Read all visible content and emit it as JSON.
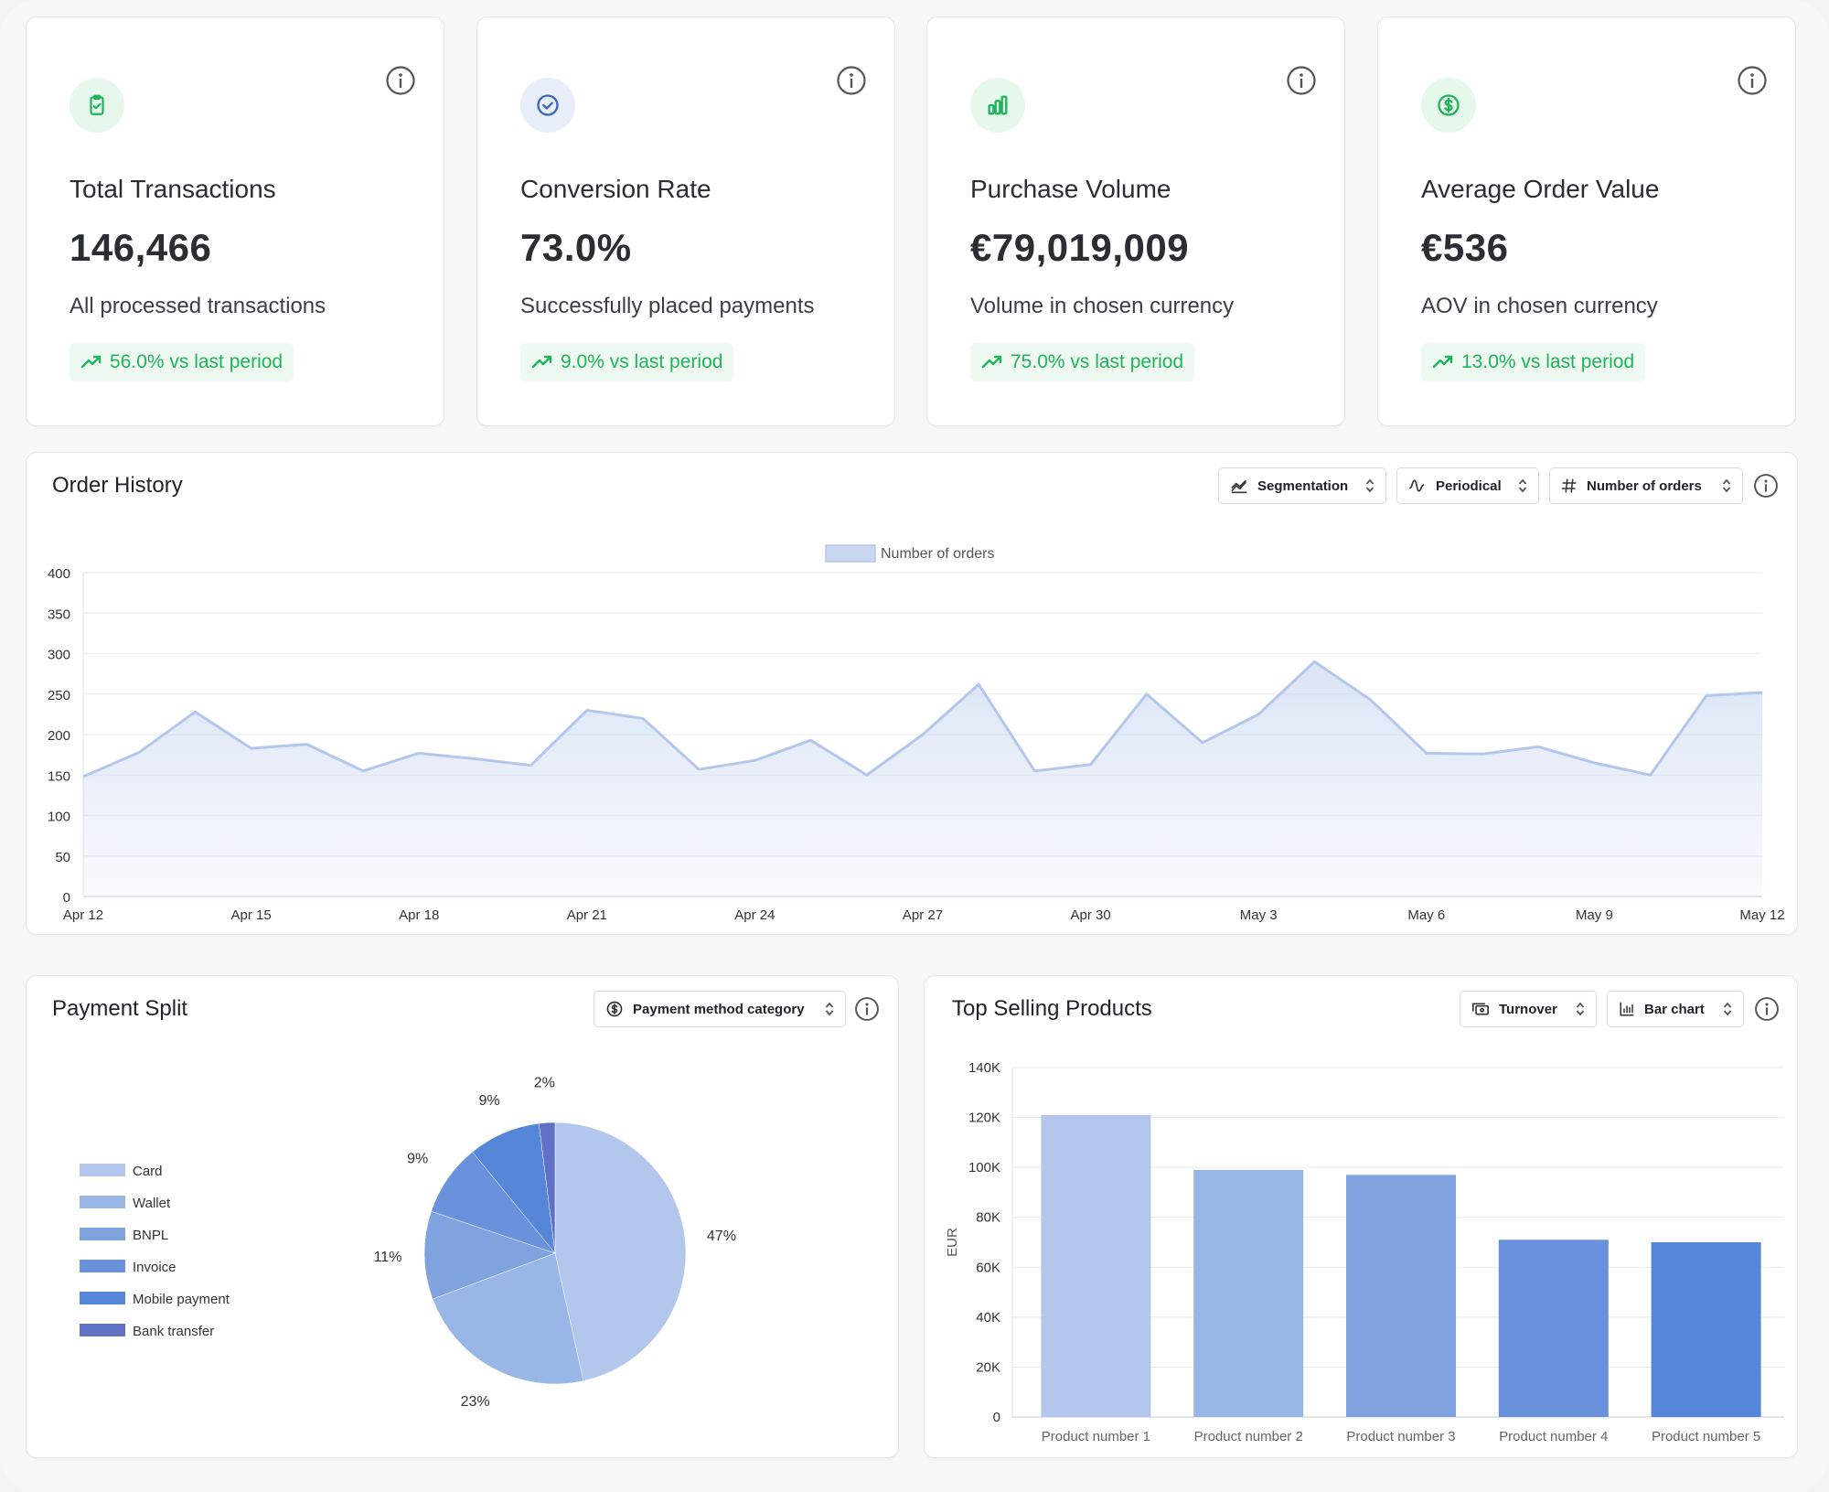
{
  "colors": {
    "accent_green": "#1fb35a",
    "chart_blue": "#b3c7ec",
    "series": [
      "#b3c7ec",
      "#9ab6e6",
      "#7fa3de",
      "#6a92dc",
      "#5586d7",
      "#6071c5"
    ]
  },
  "kpis": [
    {
      "title": "Total Transactions",
      "value": "146,466",
      "subtitle": "All processed transactions",
      "trend": "56.0% vs last period",
      "icon": "clipboard-check-icon",
      "icon_bg": "#e6f8ec",
      "icon_color": "#1fb35a"
    },
    {
      "title": "Conversion Rate",
      "value": "73.0%",
      "subtitle": "Successfully placed payments",
      "trend": "9.0% vs last period",
      "icon": "check-circle-icon",
      "icon_bg": "#e8eef9",
      "icon_color": "#3f66b8"
    },
    {
      "title": "Purchase Volume",
      "value": "€79,019,009",
      "subtitle": "Volume in chosen currency",
      "trend": "75.0% vs last period",
      "icon": "bar-chart-icon",
      "icon_bg": "#e6f8ec",
      "icon_color": "#1fb35a"
    },
    {
      "title": "Average Order Value",
      "value": "€536",
      "subtitle": "AOV in chosen currency",
      "trend": "13.0% vs last period",
      "icon": "dollar-circle-icon",
      "icon_bg": "#e6f8ec",
      "icon_color": "#1fb35a"
    }
  ],
  "order_history": {
    "title": "Order History",
    "controls": {
      "segmentation": "Segmentation",
      "periodical": "Periodical",
      "metric": "Number of orders"
    }
  },
  "payment_split": {
    "title": "Payment Split",
    "control": "Payment method category"
  },
  "top_products": {
    "title": "Top Selling Products",
    "controls": {
      "turnover": "Turnover",
      "chart_type": "Bar chart"
    }
  },
  "chart_data": [
    {
      "type": "area",
      "title": "Order History",
      "legend": "Number of orders",
      "x_tick_labels": [
        "Apr 12",
        "Apr 15",
        "Apr 18",
        "Apr 21",
        "Apr 24",
        "Apr 27",
        "Apr 30",
        "May 3",
        "May 6",
        "May 9",
        "May 12"
      ],
      "values": [
        148,
        178,
        228,
        183,
        188,
        155,
        177,
        170,
        162,
        230,
        220,
        157,
        168,
        193,
        150,
        200,
        262,
        155,
        163,
        250,
        190,
        225,
        290,
        243,
        177,
        176,
        185,
        165,
        150,
        248,
        252
      ],
      "y_ticks": [
        0,
        50,
        100,
        150,
        200,
        250,
        300,
        350,
        400
      ],
      "ylim": [
        0,
        400
      ]
    },
    {
      "type": "pie",
      "title": "Payment Split",
      "labels": [
        "Card",
        "Wallet",
        "BNPL",
        "Invoice",
        "Mobile payment",
        "Bank transfer"
      ],
      "values": [
        47,
        23,
        11,
        9,
        9,
        2
      ],
      "value_labels": [
        "47%",
        "23%",
        "11%",
        "9%",
        "9%",
        "2%"
      ]
    },
    {
      "type": "bar",
      "title": "Top Selling Products",
      "categories": [
        "Product number 1",
        "Product number 2",
        "Product number 3",
        "Product number 4",
        "Product number 5"
      ],
      "values": [
        121000,
        99000,
        97000,
        71000,
        70000
      ],
      "ylabel": "EUR",
      "y_ticks": [
        0,
        20000,
        40000,
        60000,
        80000,
        100000,
        120000,
        140000
      ],
      "y_tick_labels": [
        "0",
        "20K",
        "40K",
        "60K",
        "80K",
        "100K",
        "120K",
        "140K"
      ],
      "ylim": [
        0,
        140000
      ]
    }
  ]
}
